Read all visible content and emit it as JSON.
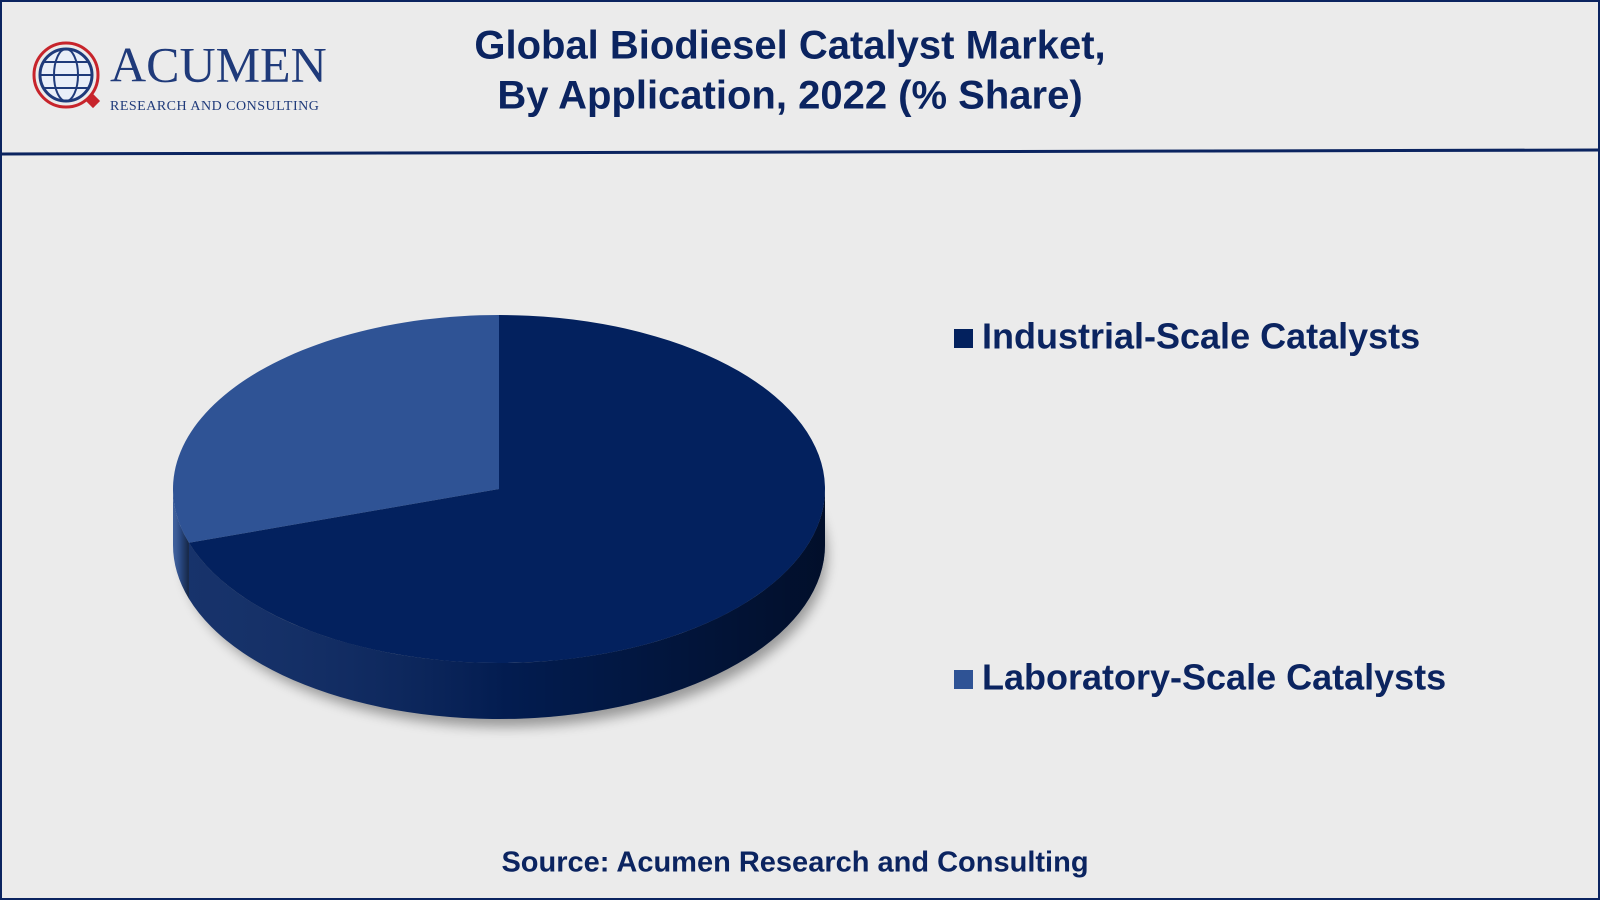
{
  "header": {
    "logo_name": "ACUMEN",
    "logo_tagline": "RESEARCH AND CONSULTING"
  },
  "chart_data": {
    "type": "pie",
    "title": [
      "Global Biodiesel Catalyst Market,",
      "By Application, 2022 (% Share)"
    ],
    "categories": [
      "Industrial-Scale Catalysts",
      "Laboratory-Scale Catalysts"
    ],
    "values": [
      70,
      30
    ],
    "colors": [
      "#03215e",
      "#2f5395"
    ],
    "source": "Source: Acumen Research and Consulting"
  }
}
